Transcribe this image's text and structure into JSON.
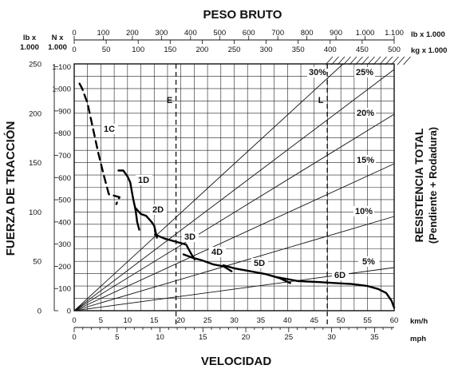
{
  "chart_data": {
    "type": "line",
    "title": "PESO BRUTO",
    "xlabel": "VELOCIDAD",
    "ylabel": "FUERZA DE TRACCIÓN",
    "right_label": [
      "RESISTENCIA TOTAL",
      "(Pendiente + Rodadura)"
    ],
    "units": {
      "left_outer": [
        "lb x",
        "1.000"
      ],
      "left_inner": [
        "N x",
        "1.000"
      ],
      "top_upper": "lb x 1.000",
      "top_lower": "kg x 1.000",
      "bottom_upper": "km/h",
      "bottom_lower": "mph"
    },
    "x_kmh": {
      "min": 0,
      "max": 60,
      "ticks": [
        0,
        5,
        10,
        15,
        20,
        25,
        30,
        35,
        40,
        45,
        50,
        55,
        60
      ]
    },
    "x_mph_ticks": [
      0,
      5,
      10,
      15,
      20,
      25,
      30,
      35
    ],
    "y_lb": {
      "min": 0,
      "max": 250,
      "ticks": [
        0,
        50,
        100,
        150,
        200,
        250
      ]
    },
    "y_N_ticks": [
      {
        "v": 0,
        "label": "0"
      },
      {
        "v": 100,
        "label": "100"
      },
      {
        "v": 200,
        "label": "200"
      },
      {
        "v": 300,
        "label": "300"
      },
      {
        "v": 400,
        "label": "400"
      },
      {
        "v": 500,
        "label": "500"
      },
      {
        "v": 600,
        "label": "600"
      },
      {
        "v": 700,
        "label": "700"
      },
      {
        "v": 800,
        "label": "800"
      },
      {
        "v": 900,
        "label": "900"
      },
      {
        "v": 1000,
        "label": "1.000"
      },
      {
        "v": 1100,
        "label": "1.100"
      }
    ],
    "top_lb_ticks": [
      {
        "v": 0,
        "label": "0"
      },
      {
        "v": 100,
        "label": "100"
      },
      {
        "v": 200,
        "label": "200"
      },
      {
        "v": 300,
        "label": "300"
      },
      {
        "v": 400,
        "label": "400"
      },
      {
        "v": 500,
        "label": "500"
      },
      {
        "v": 600,
        "label": "600"
      },
      {
        "v": 700,
        "label": "700"
      },
      {
        "v": 800,
        "label": "800"
      },
      {
        "v": 900,
        "label": "900"
      },
      {
        "v": 1000,
        "label": "1.000"
      },
      {
        "v": 1100,
        "label": "1.100"
      }
    ],
    "top_kg_ticks": [
      0,
      50,
      100,
      150,
      200,
      250,
      300,
      350,
      400,
      450,
      500
    ],
    "resistance_lines": [
      {
        "label": "5%",
        "pct": 5
      },
      {
        "label": "10%",
        "pct": 10
      },
      {
        "label": "15%",
        "pct": 15
      },
      {
        "label": "20%",
        "pct": 20
      },
      {
        "label": "25%",
        "pct": 25
      },
      {
        "label": "30%",
        "pct": 30
      }
    ],
    "reference_lines": [
      {
        "label": "E",
        "weight_lb": 350
      },
      {
        "label": "L",
        "weight_lb": 870
      }
    ],
    "series": [
      {
        "name": "1C",
        "dashed": true,
        "points": [
          [
            1,
            230
          ],
          [
            1.5,
            225
          ],
          [
            2.5,
            210
          ],
          [
            3.5,
            185
          ],
          [
            4.5,
            160
          ],
          [
            5.5,
            138
          ],
          [
            6.5,
            118
          ],
          [
            8.5,
            115
          ],
          [
            8.2,
            112
          ],
          [
            7.9,
            108
          ]
        ]
      },
      {
        "name": "1D",
        "dashed": false,
        "points": [
          [
            8.3,
            142
          ],
          [
            9.2,
            142
          ],
          [
            10,
            136
          ],
          [
            10.5,
            130
          ],
          [
            11,
            115
          ],
          [
            11.5,
            102
          ],
          [
            11.8,
            90
          ],
          [
            12.2,
            82
          ]
        ]
      },
      {
        "name": "2D",
        "dashed": false,
        "points": [
          [
            11.5,
            104
          ],
          [
            12.5,
            98
          ],
          [
            13.5,
            96
          ],
          [
            14.5,
            90
          ],
          [
            15,
            86
          ],
          [
            15.5,
            74
          ]
        ]
      },
      {
        "name": "3D",
        "dashed": false,
        "points": [
          [
            15.2,
            77
          ],
          [
            17,
            73
          ],
          [
            19,
            70
          ],
          [
            21,
            67
          ],
          [
            21.5,
            62
          ],
          [
            22,
            57
          ],
          [
            22.6,
            52
          ]
        ]
      },
      {
        "name": "4D",
        "dashed": false,
        "points": [
          [
            20.5,
            57
          ],
          [
            22,
            54
          ],
          [
            24,
            51
          ],
          [
            26,
            47
          ],
          [
            28,
            45
          ],
          [
            29.5,
            40
          ]
        ]
      },
      {
        "name": "5D",
        "dashed": false,
        "points": [
          [
            28,
            46
          ],
          [
            30,
            43
          ],
          [
            33,
            40
          ],
          [
            36,
            37
          ],
          [
            38.5,
            33
          ],
          [
            40.5,
            28
          ]
        ]
      },
      {
        "name": "6D",
        "dashed": false,
        "points": [
          [
            38,
            34
          ],
          [
            42,
            30
          ],
          [
            46,
            29
          ],
          [
            49,
            28
          ],
          [
            52,
            27
          ],
          [
            55,
            25
          ],
          [
            57,
            22
          ],
          [
            58.5,
            18
          ],
          [
            59.5,
            10
          ],
          [
            60,
            3
          ]
        ]
      }
    ]
  }
}
